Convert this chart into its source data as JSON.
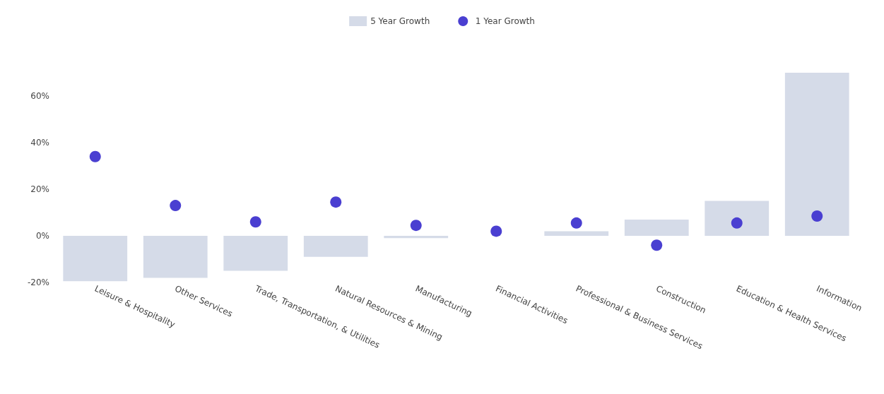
{
  "chart_data": {
    "type": "bar",
    "categories": [
      "Leisure & Hospitality",
      "Other Services",
      "Trade, Transportation, & Utilities",
      "Natural Resources & Mining",
      "Manufacturing",
      "Financial Activities",
      "Professional & Business Services",
      "Construction",
      "Education & Health Services",
      "Information"
    ],
    "series": [
      {
        "name": "5 Year Growth",
        "color": "#d5dbe8",
        "values": [
          -19.5,
          -18,
          -15,
          -9,
          -1,
          0,
          2,
          7,
          15,
          70
        ]
      },
      {
        "name": "1 Year Growth",
        "type": "scatter",
        "color": "#4a3fd1",
        "x": [
          "Leisure & Hospitality",
          "Other Services",
          "Trade, Transportation, & Utilities",
          "Natural Resources & Mining",
          "Manufacturing",
          "Financial Activities",
          "Professional & Business Services",
          "Construction",
          "Education & Health Services",
          "Information"
        ],
        "values": [
          34,
          13,
          6,
          14.5,
          4.5,
          2,
          5.5,
          -4,
          5.5,
          8.5
        ]
      }
    ],
    "ylim": [
      -20,
      70
    ],
    "yticks": [
      {
        "value": -20,
        "label": "-20%"
      },
      {
        "value": 0,
        "label": "0%"
      },
      {
        "value": 20,
        "label": "20%"
      },
      {
        "value": 40,
        "label": "40%"
      },
      {
        "value": 60,
        "label": "60%"
      }
    ],
    "legend": "top",
    "marker": "circle",
    "grid": false
  }
}
